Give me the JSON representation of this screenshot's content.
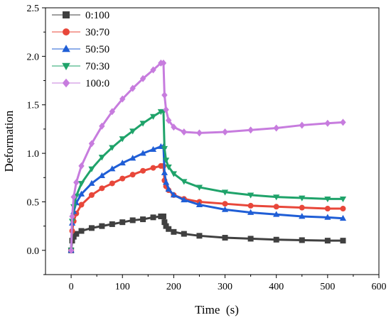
{
  "chart_data": {
    "type": "line",
    "xlabel": "Time  (s)",
    "ylabel": "Deformation",
    "xlim": [
      -50,
      600
    ],
    "ylim": [
      -0.25,
      2.5
    ],
    "xticks": [
      0,
      100,
      200,
      300,
      400,
      500,
      600
    ],
    "yticks": [
      0.0,
      0.5,
      1.0,
      1.5,
      2.0,
      2.5
    ],
    "ytick_labels": [
      "0.0",
      "0.5",
      "1.0",
      "1.5",
      "2.0",
      "2.5"
    ],
    "legend_position": "top-left",
    "grid": false,
    "series": [
      {
        "name": "0:100",
        "color": "#404040",
        "marker": "square",
        "x": [
          0,
          2,
          5,
          10,
          20,
          40,
          60,
          80,
          100,
          120,
          140,
          160,
          175,
          180,
          182,
          185,
          190,
          200,
          220,
          250,
          300,
          350,
          400,
          450,
          500,
          530
        ],
        "y": [
          0.0,
          0.1,
          0.14,
          0.17,
          0.2,
          0.23,
          0.25,
          0.27,
          0.29,
          0.31,
          0.32,
          0.34,
          0.35,
          0.35,
          0.29,
          0.25,
          0.22,
          0.19,
          0.17,
          0.15,
          0.13,
          0.12,
          0.11,
          0.105,
          0.1,
          0.1
        ]
      },
      {
        "name": "30:70",
        "color": "#e8473a",
        "marker": "circle",
        "x": [
          0,
          2,
          5,
          10,
          20,
          40,
          60,
          80,
          100,
          120,
          140,
          160,
          175,
          180,
          182,
          185,
          190,
          200,
          220,
          250,
          300,
          350,
          400,
          450,
          500,
          530
        ],
        "y": [
          0.0,
          0.2,
          0.3,
          0.38,
          0.47,
          0.57,
          0.64,
          0.69,
          0.74,
          0.78,
          0.82,
          0.85,
          0.87,
          0.87,
          0.72,
          0.66,
          0.62,
          0.57,
          0.53,
          0.5,
          0.48,
          0.46,
          0.45,
          0.44,
          0.43,
          0.43
        ]
      },
      {
        "name": "50:50",
        "color": "#1f5ed6",
        "marker": "triangle-up",
        "x": [
          0,
          2,
          5,
          10,
          20,
          40,
          60,
          80,
          100,
          120,
          140,
          160,
          175,
          180,
          182,
          185,
          190,
          200,
          220,
          250,
          300,
          350,
          400,
          450,
          500,
          530
        ],
        "y": [
          0.0,
          0.28,
          0.4,
          0.49,
          0.58,
          0.69,
          0.77,
          0.84,
          0.9,
          0.95,
          1.0,
          1.04,
          1.07,
          1.07,
          0.8,
          0.7,
          0.63,
          0.57,
          0.52,
          0.47,
          0.42,
          0.39,
          0.37,
          0.35,
          0.34,
          0.33
        ]
      },
      {
        "name": "70:30",
        "color": "#1fa36a",
        "marker": "triangle-down",
        "x": [
          0,
          2,
          5,
          10,
          20,
          40,
          60,
          80,
          100,
          120,
          140,
          160,
          175,
          180,
          182,
          185,
          190,
          200,
          220,
          250,
          300,
          350,
          400,
          450,
          500,
          530
        ],
        "y": [
          0.0,
          0.3,
          0.45,
          0.56,
          0.69,
          0.84,
          0.96,
          1.06,
          1.15,
          1.23,
          1.31,
          1.38,
          1.43,
          1.43,
          1.05,
          0.93,
          0.86,
          0.79,
          0.71,
          0.65,
          0.6,
          0.57,
          0.55,
          0.54,
          0.53,
          0.53
        ]
      },
      {
        "name": "100:0",
        "color": "#c77cde",
        "marker": "diamond",
        "x": [
          0,
          2,
          5,
          10,
          20,
          40,
          60,
          80,
          100,
          120,
          140,
          160,
          175,
          180,
          182,
          185,
          190,
          200,
          220,
          250,
          300,
          350,
          400,
          450,
          500,
          530
        ],
        "y": [
          0.0,
          0.35,
          0.55,
          0.7,
          0.87,
          1.1,
          1.28,
          1.43,
          1.56,
          1.67,
          1.77,
          1.86,
          1.93,
          1.93,
          1.6,
          1.45,
          1.34,
          1.27,
          1.22,
          1.21,
          1.22,
          1.24,
          1.26,
          1.29,
          1.31,
          1.32
        ]
      }
    ]
  }
}
